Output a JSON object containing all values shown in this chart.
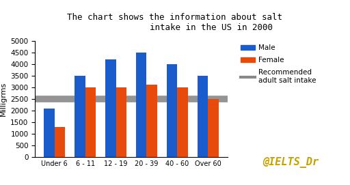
{
  "title_line1": "The chart shows the information about salt",
  "title_line2": "              intake in the US in 2000",
  "categories": [
    "Under 6",
    "6 - 11",
    "12 - 19",
    "20 - 39",
    "40 - 60",
    "Over 60"
  ],
  "male_values": [
    2100,
    3500,
    4200,
    4500,
    4000,
    3500
  ],
  "female_values": [
    1300,
    3000,
    3000,
    3100,
    3000,
    2500
  ],
  "recommended_level": 2500,
  "male_color": "#1a5ccc",
  "female_color": "#e84a0c",
  "recommended_color": "#888888",
  "ylabel": "Milligrms",
  "ylim": [
    0,
    5000
  ],
  "yticks": [
    0,
    500,
    1000,
    1500,
    2000,
    2500,
    3000,
    3500,
    4000,
    4500,
    5000
  ],
  "watermark": "@IELTS_Dr",
  "watermark_color": "#c8a000",
  "legend_male": "Male",
  "legend_female": "Female",
  "legend_recommended": "Recommended\nadult salt intake",
  "background_color": "#ffffff",
  "title_fontsize": 9,
  "bar_width": 0.35
}
